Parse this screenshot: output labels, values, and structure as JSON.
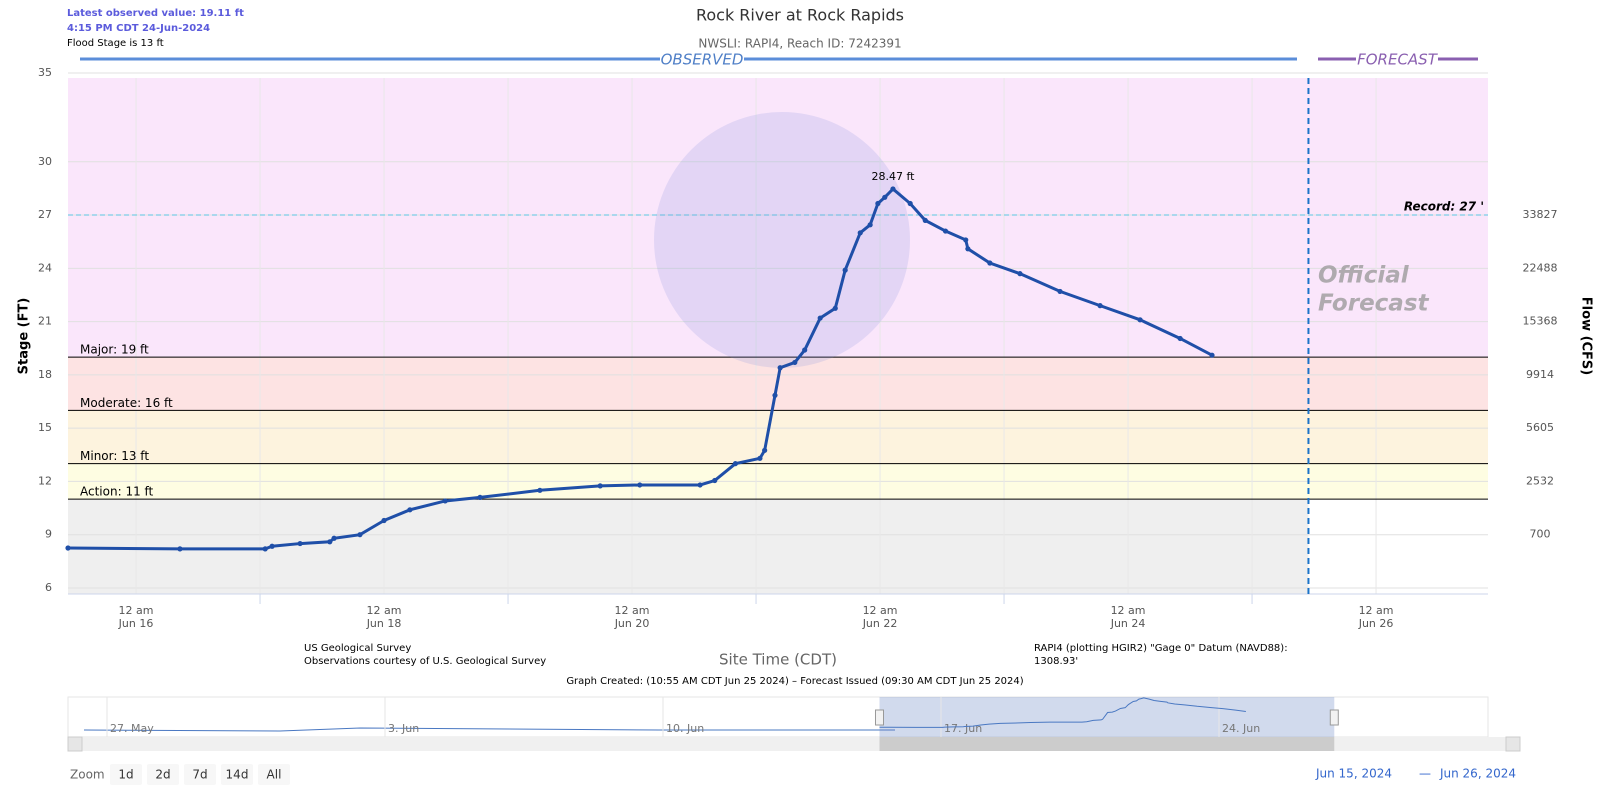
{
  "header": {
    "latest": "Latest observed value: 19.11 ft",
    "time": "4:15 PM CDT 24-Jun-2024",
    "flood_stage": "Flood Stage is 13 ft"
  },
  "chart_data": {
    "type": "line",
    "title": "Rock River at Rock Rapids",
    "subtitle": "NWSLI: RAPI4, Reach ID: 7242391",
    "observed_label": "OBSERVED",
    "forecast_label": "FORECAST",
    "forecast_note": [
      "Official",
      "Forecast"
    ],
    "ylabel": "Stage (FT)",
    "y2label": "Flow (CFS)",
    "xlabel": "Site Time (CDT)",
    "ylim": [
      5.66,
      35
    ],
    "yticks": [
      6,
      9,
      12,
      15,
      18,
      21,
      24,
      27,
      30,
      35
    ],
    "flow_ticks": [
      {
        "stage": 9,
        "flow": 700
      },
      {
        "stage": 12,
        "flow": 2532
      },
      {
        "stage": 15,
        "flow": 5605
      },
      {
        "stage": 18,
        "flow": 9914
      },
      {
        "stage": 21,
        "flow": 15368
      },
      {
        "stage": 24,
        "flow": 22488
      },
      {
        "stage": 27,
        "flow": 33827
      }
    ],
    "xlim": [
      "2024-06-15T10:50",
      "2024-06-26T21:40"
    ],
    "xticks": [
      {
        "value": "2024-06-16T00:00",
        "label": "12 am",
        "date": "Jun 16"
      },
      {
        "value": "2024-06-18T00:00",
        "label": "12 am",
        "date": "Jun 18"
      },
      {
        "value": "2024-06-20T00:00",
        "label": "12 am",
        "date": "Jun 20"
      },
      {
        "value": "2024-06-22T00:00",
        "label": "12 am",
        "date": "Jun 22"
      },
      {
        "value": "2024-06-24T00:00",
        "label": "12 am",
        "date": "Jun 24"
      },
      {
        "value": "2024-06-26T00:00",
        "label": "12 am",
        "date": "Jun 26"
      }
    ],
    "xgrid": [
      "2024-06-17T00:00",
      "2024-06-19T00:00",
      "2024-06-21T00:00",
      "2024-06-23T00:00",
      "2024-06-25T00:00"
    ],
    "grid": true,
    "below_color": "#efefef",
    "thresholds": [
      {
        "label": "Action: 11 ft",
        "value": 11,
        "color": "#fefde2"
      },
      {
        "label": "Minor: 13 ft",
        "value": 13,
        "color": "#fdf3de"
      },
      {
        "label": "Moderate: 16 ft",
        "value": 16,
        "color": "#fde3e3"
      },
      {
        "label": "Major: 19 ft",
        "value": 19,
        "color": "#fae6fb"
      }
    ],
    "record": {
      "label": "Record: 27 '",
      "value": 27,
      "color": "#5bc8e0"
    },
    "now_line": "2024-06-25T10:55",
    "peak_label": "28.47 ft",
    "series": [
      {
        "color": "#1f4fa8",
        "x": [
          "2024-06-15T10:50",
          "2024-06-16T08:30",
          "2024-06-17T01:00",
          "2024-06-17T02:20",
          "2024-06-17T07:45",
          "2024-06-17T13:30",
          "2024-06-17T14:20",
          "2024-06-17T19:20",
          "2024-06-18T00:00",
          "2024-06-18T05:00",
          "2024-06-18T11:50",
          "2024-06-18T18:35",
          "2024-06-19T06:10",
          "2024-06-19T17:50",
          "2024-06-20T01:30",
          "2024-06-20T13:10",
          "2024-06-20T16:00",
          "2024-06-20T20:00",
          "2024-06-21T00:45",
          "2024-06-21T01:40",
          "2024-06-21T03:40",
          "2024-06-21T04:40",
          "2024-06-21T07:30",
          "2024-06-21T09:25",
          "2024-06-21T12:25",
          "2024-06-21T15:20",
          "2024-06-21T17:15",
          "2024-06-21T20:10",
          "2024-06-21T22:05",
          "2024-06-21T23:35",
          "2024-06-22T00:55",
          "2024-06-22T02:30",
          "2024-06-22T05:50",
          "2024-06-22T08:45",
          "2024-06-22T12:40",
          "2024-06-22T16:35",
          "2024-06-22T17:00",
          "2024-06-22T21:15",
          "2024-06-23T03:05",
          "2024-06-23T10:50",
          "2024-06-23T18:35",
          "2024-06-24T02:20",
          "2024-06-24T10:05",
          "2024-06-24T16:15"
        ],
        "values": [
          8.25,
          8.2,
          8.2,
          8.35,
          8.5,
          8.6,
          8.8,
          9.0,
          9.8,
          10.4,
          10.9,
          11.1,
          11.5,
          11.75,
          11.8,
          11.8,
          12.05,
          13.0,
          13.3,
          13.75,
          16.85,
          18.4,
          18.7,
          19.4,
          21.2,
          21.75,
          23.9,
          26.0,
          26.45,
          27.65,
          28.0,
          28.47,
          27.65,
          26.7,
          26.1,
          25.6,
          25.1,
          24.3,
          23.7,
          22.7,
          21.9,
          21.1,
          20.05,
          19.11
        ]
      }
    ],
    "source_lines": [
      "US Geological Survey",
      "Observations courtesy of U.S. Geological Survey"
    ],
    "datum_lines": [
      "RAPI4 (plotting HGIR2) \"Gage 0\" Datum (NAVD88):",
      "1308.93'"
    ],
    "created": "Graph Created: (10:55 AM CDT Jun 25 2024) – Forecast Issued (09:30 AM CDT Jun 25 2024)",
    "navigator": {
      "ticks": [
        {
          "value": "2024-05-27T00:00",
          "label": "27. May"
        },
        {
          "value": "2024-06-03T00:00",
          "label": "3. Jun"
        },
        {
          "value": "2024-06-10T00:00",
          "label": "10. Jun"
        },
        {
          "value": "2024-06-17T00:00",
          "label": "17. Jun"
        },
        {
          "value": "2024-06-24T00:00",
          "label": "24. Jun"
        }
      ]
    }
  },
  "zoom": {
    "label": "Zoom",
    "buttons": [
      "1d",
      "2d",
      "7d",
      "14d",
      "All"
    ]
  },
  "range": {
    "from": "Jun 15, 2024",
    "sep": "—",
    "to": "Jun 26, 2024"
  }
}
